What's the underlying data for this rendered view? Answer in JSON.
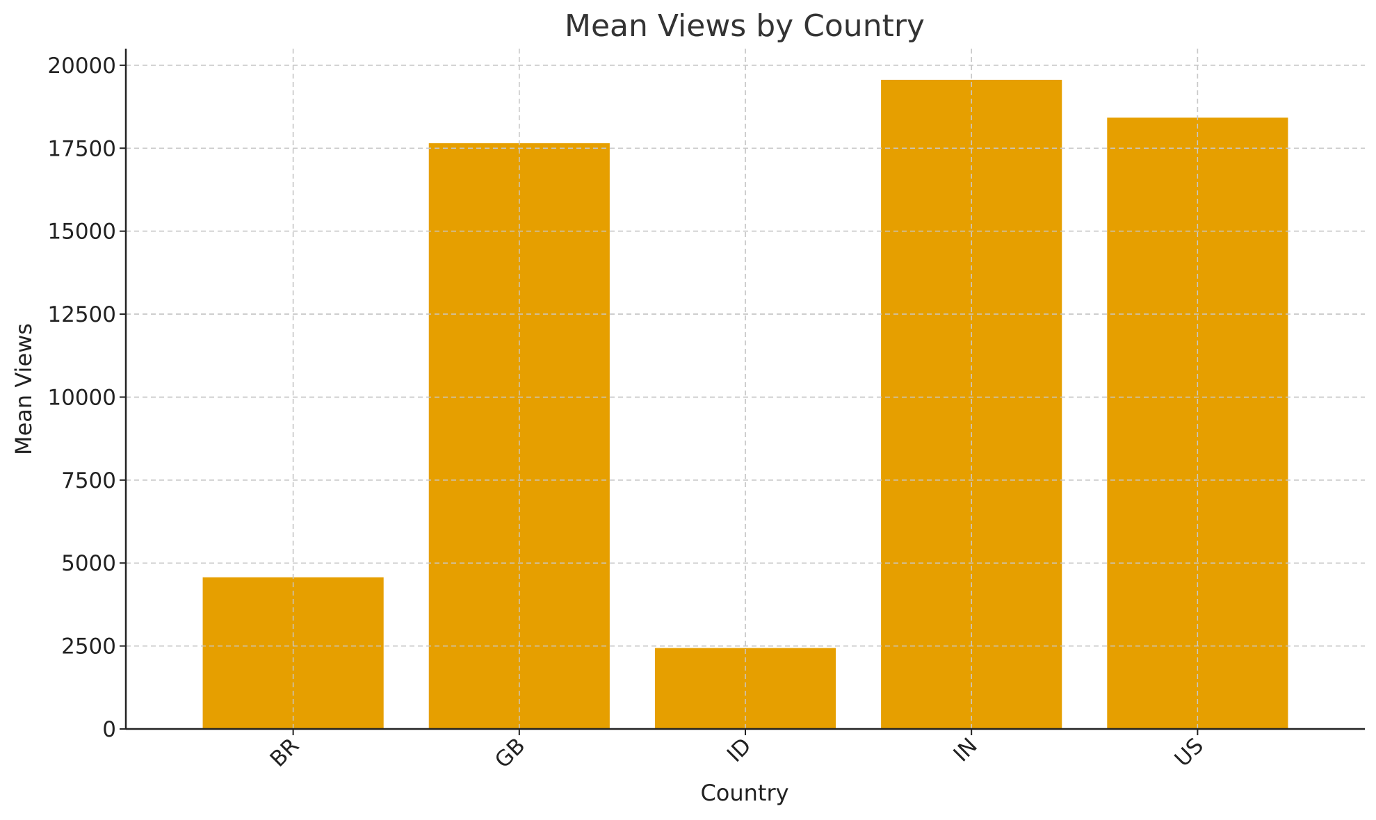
{
  "chart_data": {
    "type": "bar",
    "title": "Mean Views by Country",
    "xlabel": "Country",
    "ylabel": "Mean Views",
    "categories": [
      "BR",
      "GB",
      "ID",
      "IN",
      "US"
    ],
    "values": [
      4570,
      17650,
      2440,
      19560,
      18420
    ],
    "ylim": [
      0,
      20500
    ],
    "yticks": [
      0,
      2500,
      5000,
      7500,
      10000,
      12500,
      15000,
      17500,
      20000
    ],
    "grid": true,
    "bar_color": "#E69F00",
    "grid_color": "#c8c8c8"
  }
}
